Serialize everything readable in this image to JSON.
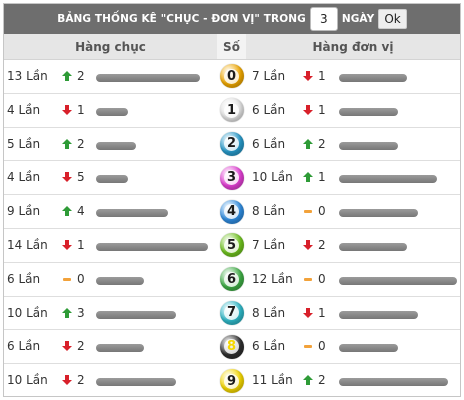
{
  "header": {
    "title_prefix": "BẢNG THỐNG KÊ \"CHỤC - ĐƠN VỊ\" TRONG",
    "days_value": "3",
    "title_suffix": "NGÀY",
    "ok_label": "Ok"
  },
  "columns": {
    "tens": "Hàng chục",
    "number": "Số",
    "units": "Hàng đơn vị"
  },
  "colors": {
    "up": "#2e9b37",
    "down": "#d8202a",
    "flat": "#f2a23a",
    "bar": "#888888"
  },
  "rows": [
    {
      "digit": "0",
      "ball_color": "#f0a800",
      "tens": {
        "count": "13 Lần",
        "trend": "up",
        "change": "2",
        "bar": 0.87
      },
      "units": {
        "count": "7 Lần",
        "trend": "down",
        "change": "1",
        "bar": 0.58
      }
    },
    {
      "digit": "1",
      "ball_color": "#e4e4e4",
      "tens": {
        "count": "4 Lần",
        "trend": "down",
        "change": "1",
        "bar": 0.27
      },
      "units": {
        "count": "6 Lần",
        "trend": "down",
        "change": "1",
        "bar": 0.5
      }
    },
    {
      "digit": "2",
      "ball_color": "#2799c9",
      "tens": {
        "count": "5 Lần",
        "trend": "up",
        "change": "2",
        "bar": 0.33
      },
      "units": {
        "count": "6 Lần",
        "trend": "up",
        "change": "2",
        "bar": 0.5
      }
    },
    {
      "digit": "3",
      "ball_color": "#e23fd4",
      "tens": {
        "count": "4 Lần",
        "trend": "down",
        "change": "5",
        "bar": 0.27
      },
      "units": {
        "count": "10 Lần",
        "trend": "up",
        "change": "1",
        "bar": 0.83
      }
    },
    {
      "digit": "4",
      "ball_color": "#2f8ce0",
      "tens": {
        "count": "9 Lần",
        "trend": "up",
        "change": "4",
        "bar": 0.6
      },
      "units": {
        "count": "8 Lần",
        "trend": "flat",
        "change": "0",
        "bar": 0.67
      }
    },
    {
      "digit": "5",
      "ball_color": "#6fc21e",
      "tens": {
        "count": "14 Lần",
        "trend": "down",
        "change": "1",
        "bar": 0.93
      },
      "units": {
        "count": "7 Lần",
        "trend": "down",
        "change": "2",
        "bar": 0.58
      }
    },
    {
      "digit": "6",
      "ball_color": "#3fae46",
      "tens": {
        "count": "6 Lần",
        "trend": "flat",
        "change": "0",
        "bar": 0.4
      },
      "units": {
        "count": "12 Lần",
        "trend": "flat",
        "change": "0",
        "bar": 1.0
      }
    },
    {
      "digit": "7",
      "ball_color": "#2fb8c8",
      "tens": {
        "count": "10 Lần",
        "trend": "up",
        "change": "3",
        "bar": 0.67
      },
      "units": {
        "count": "8 Lần",
        "trend": "down",
        "change": "1",
        "bar": 0.67
      }
    },
    {
      "digit": "8",
      "ball_color": "#2e2e2e",
      "tens": {
        "count": "6 Lần",
        "trend": "down",
        "change": "2",
        "bar": 0.4
      },
      "units": {
        "count": "6 Lần",
        "trend": "flat",
        "change": "0",
        "bar": 0.5
      }
    },
    {
      "digit": "9",
      "ball_color": "#f5d800",
      "tens": {
        "count": "10 Lần",
        "trend": "down",
        "change": "2",
        "bar": 0.67
      },
      "units": {
        "count": "11 Lần",
        "trend": "up",
        "change": "2",
        "bar": 0.92
      }
    }
  ]
}
